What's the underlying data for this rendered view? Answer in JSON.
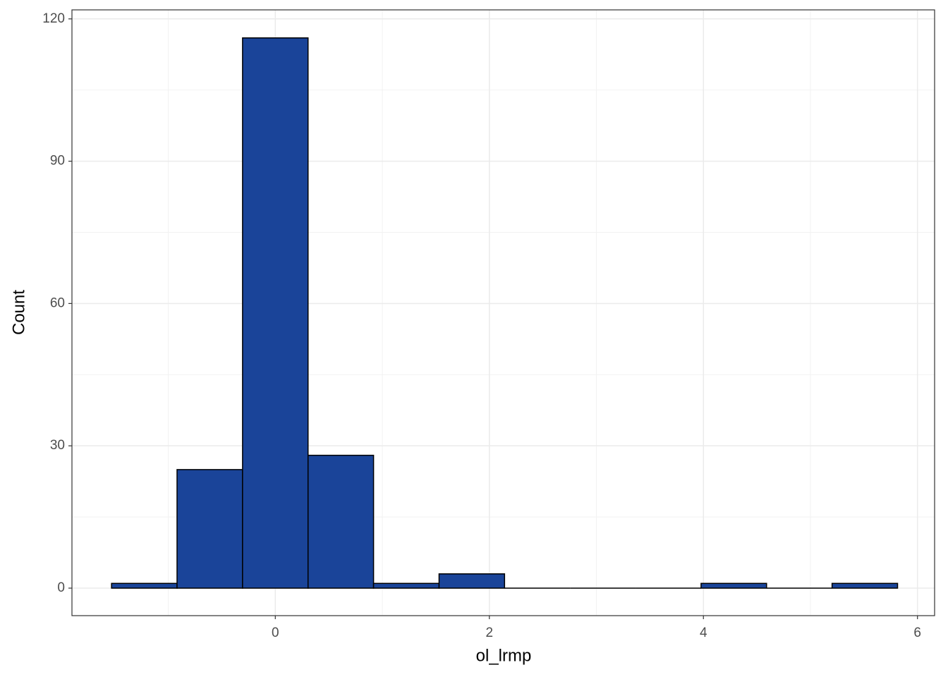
{
  "chart_data": {
    "type": "histogram",
    "x_label": "ol_lrmp",
    "y_label": "Count",
    "bins": [
      -1.53,
      -0.918,
      -0.306,
      0.306,
      0.918,
      1.53,
      2.142,
      2.754,
      3.366,
      3.978,
      4.59,
      5.202,
      5.814
    ],
    "values": [
      1,
      25,
      116,
      28,
      1,
      3,
      0,
      0,
      0,
      1,
      0,
      1
    ],
    "color": "#1a4499",
    "edgecolor": "#000000",
    "xlim": [
      -1.9,
      6.16
    ],
    "ylim": [
      -5.8,
      121.9
    ],
    "xticks": [
      0,
      2,
      4,
      6
    ],
    "yticks": [
      0,
      30,
      60,
      90,
      120
    ],
    "xminorticks": [
      -1,
      1,
      3,
      5
    ],
    "yminorticks": [
      15,
      45,
      75,
      105
    ],
    "grid": true
  }
}
